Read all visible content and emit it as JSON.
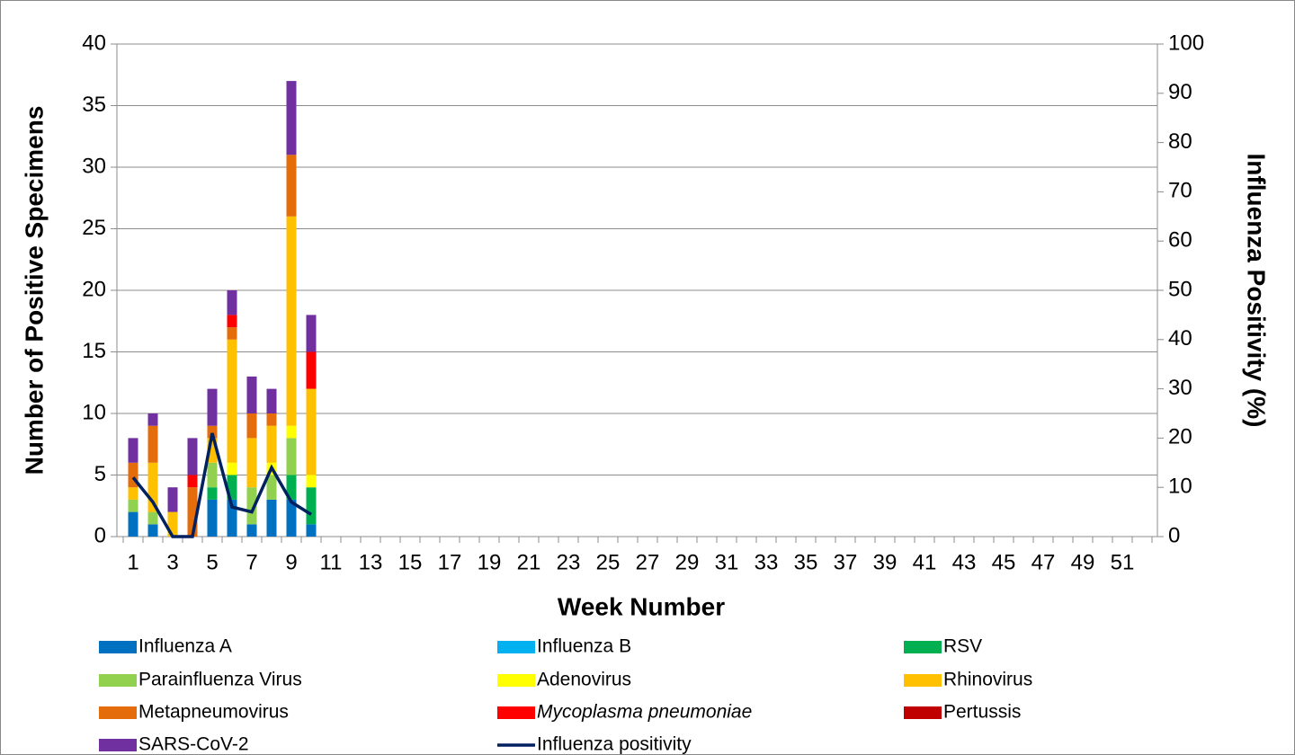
{
  "chart_data": {
    "type": "bar",
    "stacked": true,
    "x_label": "Week Number",
    "y_label": "Number of Positive Specimens",
    "y2_label": "Influenza Positivity (%)",
    "categories": [
      1,
      null,
      3,
      null,
      5,
      null,
      7,
      null,
      9,
      null,
      11,
      null,
      13,
      null,
      15,
      null,
      17,
      null,
      19,
      null,
      21,
      null,
      23,
      null,
      25,
      null,
      27,
      null,
      29,
      null,
      31,
      null,
      33,
      null,
      35,
      null,
      37,
      null,
      39,
      null,
      41,
      null,
      43,
      null,
      45,
      null,
      47,
      null,
      49,
      null,
      51,
      null
    ],
    "ylim": [
      0,
      40
    ],
    "yticks": [
      0,
      5,
      10,
      15,
      20,
      25,
      30,
      35,
      40
    ],
    "y2lim": [
      0,
      100
    ],
    "y2ticks": [
      0,
      10,
      20,
      30,
      40,
      50,
      60,
      70,
      80,
      90,
      100
    ],
    "grid": true,
    "legend": "bottom",
    "series": [
      {
        "name": "Influenza A",
        "color": "#0070c0",
        "values": [
          2,
          1,
          0,
          0,
          3,
          3,
          1,
          3,
          3,
          1,
          null,
          null,
          null,
          null,
          null,
          null,
          null,
          null,
          null,
          null,
          null,
          null,
          null,
          null,
          null,
          null,
          null,
          null,
          null,
          null,
          null,
          null,
          null,
          null,
          null,
          null,
          null,
          null,
          null,
          null,
          null,
          null,
          null,
          null,
          null,
          null,
          null,
          null,
          null,
          null,
          null,
          null
        ]
      },
      {
        "name": "Influenza B",
        "color": "#00b0f0",
        "values": [
          0,
          0,
          0,
          0,
          0,
          0,
          0,
          0,
          0,
          0,
          null,
          null,
          null,
          null,
          null,
          null,
          null,
          null,
          null,
          null,
          null,
          null,
          null,
          null,
          null,
          null,
          null,
          null,
          null,
          null,
          null,
          null,
          null,
          null,
          null,
          null,
          null,
          null,
          null,
          null,
          null,
          null,
          null,
          null,
          null,
          null,
          null,
          null,
          null,
          null,
          null,
          null
        ]
      },
      {
        "name": "RSV",
        "color": "#00b050",
        "values": [
          0,
          0,
          0,
          0,
          1,
          2,
          0,
          0,
          2,
          3,
          null,
          null,
          null,
          null,
          null,
          null,
          null,
          null,
          null,
          null,
          null,
          null,
          null,
          null,
          null,
          null,
          null,
          null,
          null,
          null,
          null,
          null,
          null,
          null,
          null,
          null,
          null,
          null,
          null,
          null,
          null,
          null,
          null,
          null,
          null,
          null,
          null,
          null,
          null,
          null,
          null,
          null
        ]
      },
      {
        "name": "Parainfluenza Virus",
        "color": "#92d050",
        "values": [
          1,
          1,
          0,
          0,
          2,
          0,
          3,
          2,
          3,
          0,
          null,
          null,
          null,
          null,
          null,
          null,
          null,
          null,
          null,
          null,
          null,
          null,
          null,
          null,
          null,
          null,
          null,
          null,
          null,
          null,
          null,
          null,
          null,
          null,
          null,
          null,
          null,
          null,
          null,
          null,
          null,
          null,
          null,
          null,
          null,
          null,
          null,
          null,
          null,
          null,
          null,
          null
        ]
      },
      {
        "name": "Adenovirus",
        "color": "#ffff00",
        "values": [
          0,
          0,
          0,
          0,
          0,
          1,
          0,
          1,
          1,
          1,
          null,
          null,
          null,
          null,
          null,
          null,
          null,
          null,
          null,
          null,
          null,
          null,
          null,
          null,
          null,
          null,
          null,
          null,
          null,
          null,
          null,
          null,
          null,
          null,
          null,
          null,
          null,
          null,
          null,
          null,
          null,
          null,
          null,
          null,
          null,
          null,
          null,
          null,
          null,
          null,
          null,
          null
        ]
      },
      {
        "name": "Rhinovirus",
        "color": "#ffc000",
        "values": [
          1,
          4,
          2,
          0,
          2,
          10,
          4,
          3,
          17,
          7,
          null,
          null,
          null,
          null,
          null,
          null,
          null,
          null,
          null,
          null,
          null,
          null,
          null,
          null,
          null,
          null,
          null,
          null,
          null,
          null,
          null,
          null,
          null,
          null,
          null,
          null,
          null,
          null,
          null,
          null,
          null,
          null,
          null,
          null,
          null,
          null,
          null,
          null,
          null,
          null,
          null,
          null
        ]
      },
      {
        "name": "Metapneumovirus",
        "color": "#e46c0a",
        "values": [
          2,
          3,
          0,
          4,
          1,
          1,
          2,
          1,
          5,
          0,
          null,
          null,
          null,
          null,
          null,
          null,
          null,
          null,
          null,
          null,
          null,
          null,
          null,
          null,
          null,
          null,
          null,
          null,
          null,
          null,
          null,
          null,
          null,
          null,
          null,
          null,
          null,
          null,
          null,
          null,
          null,
          null,
          null,
          null,
          null,
          null,
          null,
          null,
          null,
          null,
          null,
          null
        ]
      },
      {
        "name": "Mycoplasma pneumoniae",
        "color": "#ff0000",
        "values": [
          0,
          0,
          0,
          1,
          0,
          1,
          0,
          0,
          0,
          3,
          null,
          null,
          null,
          null,
          null,
          null,
          null,
          null,
          null,
          null,
          null,
          null,
          null,
          null,
          null,
          null,
          null,
          null,
          null,
          null,
          null,
          null,
          null,
          null,
          null,
          null,
          null,
          null,
          null,
          null,
          null,
          null,
          null,
          null,
          null,
          null,
          null,
          null,
          null,
          null,
          null,
          null
        ]
      },
      {
        "name": "Pertussis",
        "color": "#c00000",
        "values": [
          0,
          0,
          0,
          0,
          0,
          0,
          0,
          0,
          0,
          0,
          null,
          null,
          null,
          null,
          null,
          null,
          null,
          null,
          null,
          null,
          null,
          null,
          null,
          null,
          null,
          null,
          null,
          null,
          null,
          null,
          null,
          null,
          null,
          null,
          null,
          null,
          null,
          null,
          null,
          null,
          null,
          null,
          null,
          null,
          null,
          null,
          null,
          null,
          null,
          null,
          null,
          null
        ]
      },
      {
        "name": "SARS-CoV-2",
        "color": "#7030a0",
        "values": [
          2,
          1,
          2,
          3,
          3,
          2,
          3,
          2,
          6,
          3,
          null,
          null,
          null,
          null,
          null,
          null,
          null,
          null,
          null,
          null,
          null,
          null,
          null,
          null,
          null,
          null,
          null,
          null,
          null,
          null,
          null,
          null,
          null,
          null,
          null,
          null,
          null,
          null,
          null,
          null,
          null,
          null,
          null,
          null,
          null,
          null,
          null,
          null,
          null,
          null,
          null,
          null
        ]
      },
      {
        "name": "Influenza positivity",
        "type": "line",
        "axis": "y2",
        "color": "#002060",
        "values": [
          12,
          7,
          0,
          0,
          21,
          6,
          5,
          14,
          7,
          4.5,
          null,
          null,
          null,
          null,
          null,
          null,
          null,
          null,
          null,
          null,
          null,
          null,
          null,
          null,
          null,
          null,
          null,
          null,
          null,
          null,
          null,
          null,
          null,
          null,
          null,
          null,
          null,
          null,
          null,
          null,
          null,
          null,
          null,
          null,
          null,
          null,
          null,
          null,
          null,
          null,
          null,
          null
        ]
      }
    ]
  }
}
